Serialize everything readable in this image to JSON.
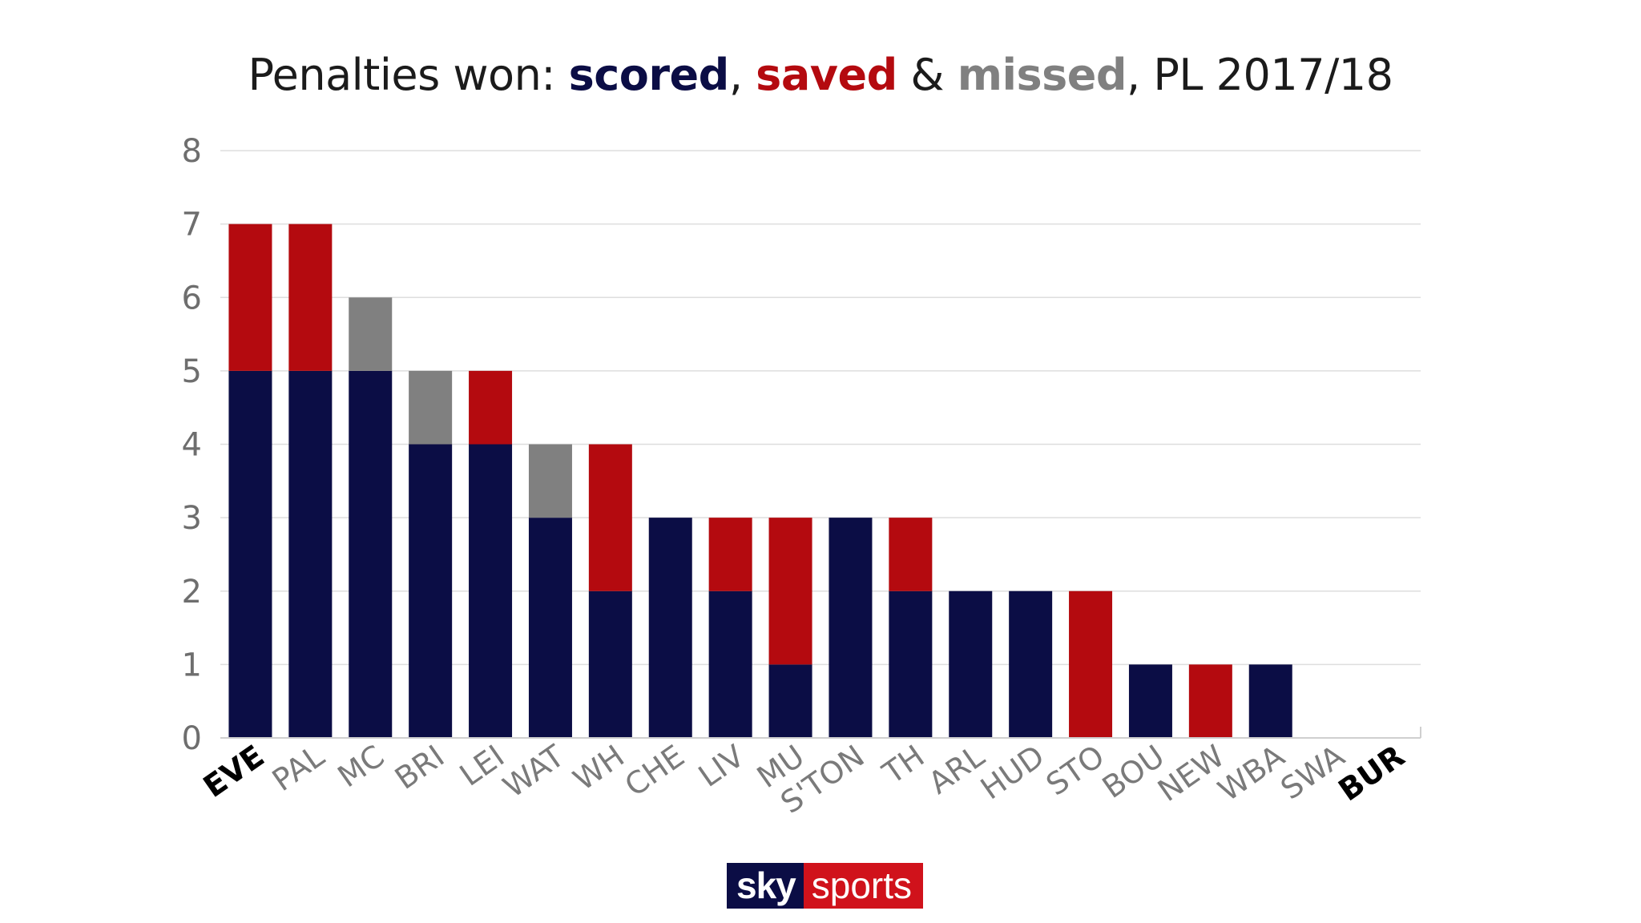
{
  "title": {
    "prefix": "Penalties won: ",
    "scored": "scored",
    "sep1": ", ",
    "saved": "saved",
    "sep2": " & ",
    "missed": "missed",
    "suffix": ", PL 2017/18"
  },
  "colors": {
    "scored": "#0b0d45",
    "saved": "#b40a0f",
    "missed": "#808080"
  },
  "logo": {
    "sky": "sky",
    "sports": "sports"
  },
  "chart_data": {
    "type": "bar",
    "stacked": true,
    "title": "Penalties won: scored, saved & missed, PL 2017/18",
    "xlabel": "",
    "ylabel": "",
    "ylim": [
      0,
      8
    ],
    "yticks": [
      0,
      1,
      2,
      3,
      4,
      5,
      6,
      7,
      8
    ],
    "grid": true,
    "categories": [
      "EVE",
      "PAL",
      "MC",
      "BRI",
      "LEI",
      "WAT",
      "WH",
      "CHE",
      "LIV",
      "MU",
      "S'TON",
      "TH",
      "ARL",
      "HUD",
      "STO",
      "BOU",
      "NEW",
      "WBA",
      "SWA",
      "BUR"
    ],
    "highlighted": [
      "EVE",
      "BUR"
    ],
    "series": [
      {
        "name": "scored",
        "color": "#0b0d45",
        "values": [
          5,
          5,
          5,
          4,
          4,
          3,
          2,
          3,
          2,
          1,
          3,
          2,
          2,
          2,
          0,
          1,
          0,
          1,
          0,
          0
        ]
      },
      {
        "name": "saved",
        "color": "#b40a0f",
        "values": [
          2,
          2,
          0,
          0,
          1,
          0,
          2,
          0,
          1,
          2,
          0,
          1,
          0,
          0,
          2,
          0,
          1,
          0,
          0,
          0
        ]
      },
      {
        "name": "missed",
        "color": "#808080",
        "values": [
          0,
          0,
          1,
          1,
          0,
          1,
          0,
          0,
          0,
          0,
          0,
          0,
          0,
          0,
          0,
          0,
          0,
          0,
          0,
          0
        ]
      }
    ]
  }
}
